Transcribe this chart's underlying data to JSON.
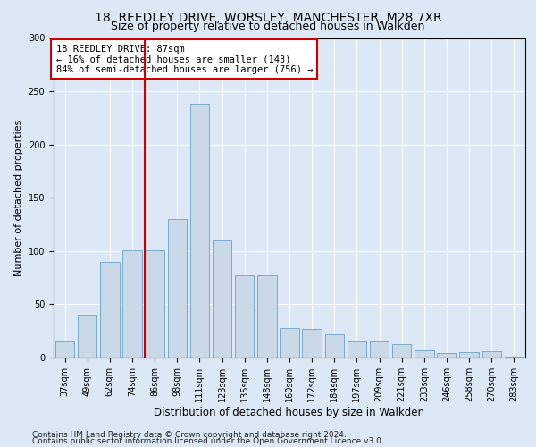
{
  "title1": "18, REEDLEY DRIVE, WORSLEY, MANCHESTER, M28 7XR",
  "title2": "Size of property relative to detached houses in Walkden",
  "xlabel": "Distribution of detached houses by size in Walkden",
  "ylabel": "Number of detached properties",
  "categories": [
    "37sqm",
    "49sqm",
    "62sqm",
    "74sqm",
    "86sqm",
    "98sqm",
    "111sqm",
    "123sqm",
    "135sqm",
    "148sqm",
    "160sqm",
    "172sqm",
    "184sqm",
    "197sqm",
    "209sqm",
    "221sqm",
    "233sqm",
    "246sqm",
    "258sqm",
    "270sqm",
    "283sqm"
  ],
  "values": [
    16,
    40,
    90,
    101,
    101,
    130,
    238,
    110,
    77,
    77,
    28,
    27,
    22,
    16,
    16,
    13,
    7,
    4,
    5,
    6,
    1
  ],
  "bar_color": "#c9d9e8",
  "bar_edge_color": "#7aaac8",
  "vline_x_index": 4,
  "vline_color": "#cc0000",
  "annotation_text": "18 REEDLEY DRIVE: 87sqm\n← 16% of detached houses are smaller (143)\n84% of semi-detached houses are larger (756) →",
  "annotation_box_color": "#ffffff",
  "annotation_box_edge": "#cc0000",
  "ylim": [
    0,
    300
  ],
  "yticks": [
    0,
    50,
    100,
    150,
    200,
    250,
    300
  ],
  "footer1": "Contains HM Land Registry data © Crown copyright and database right 2024.",
  "footer2": "Contains public sector information licensed under the Open Government Licence v3.0.",
  "bg_color": "#dce8f5",
  "plot_bg_color": "#dce8f5",
  "title1_fontsize": 10,
  "title2_fontsize": 9,
  "xlabel_fontsize": 8.5,
  "ylabel_fontsize": 8,
  "tick_fontsize": 7,
  "footer_fontsize": 6.5,
  "annot_fontsize": 7.5
}
